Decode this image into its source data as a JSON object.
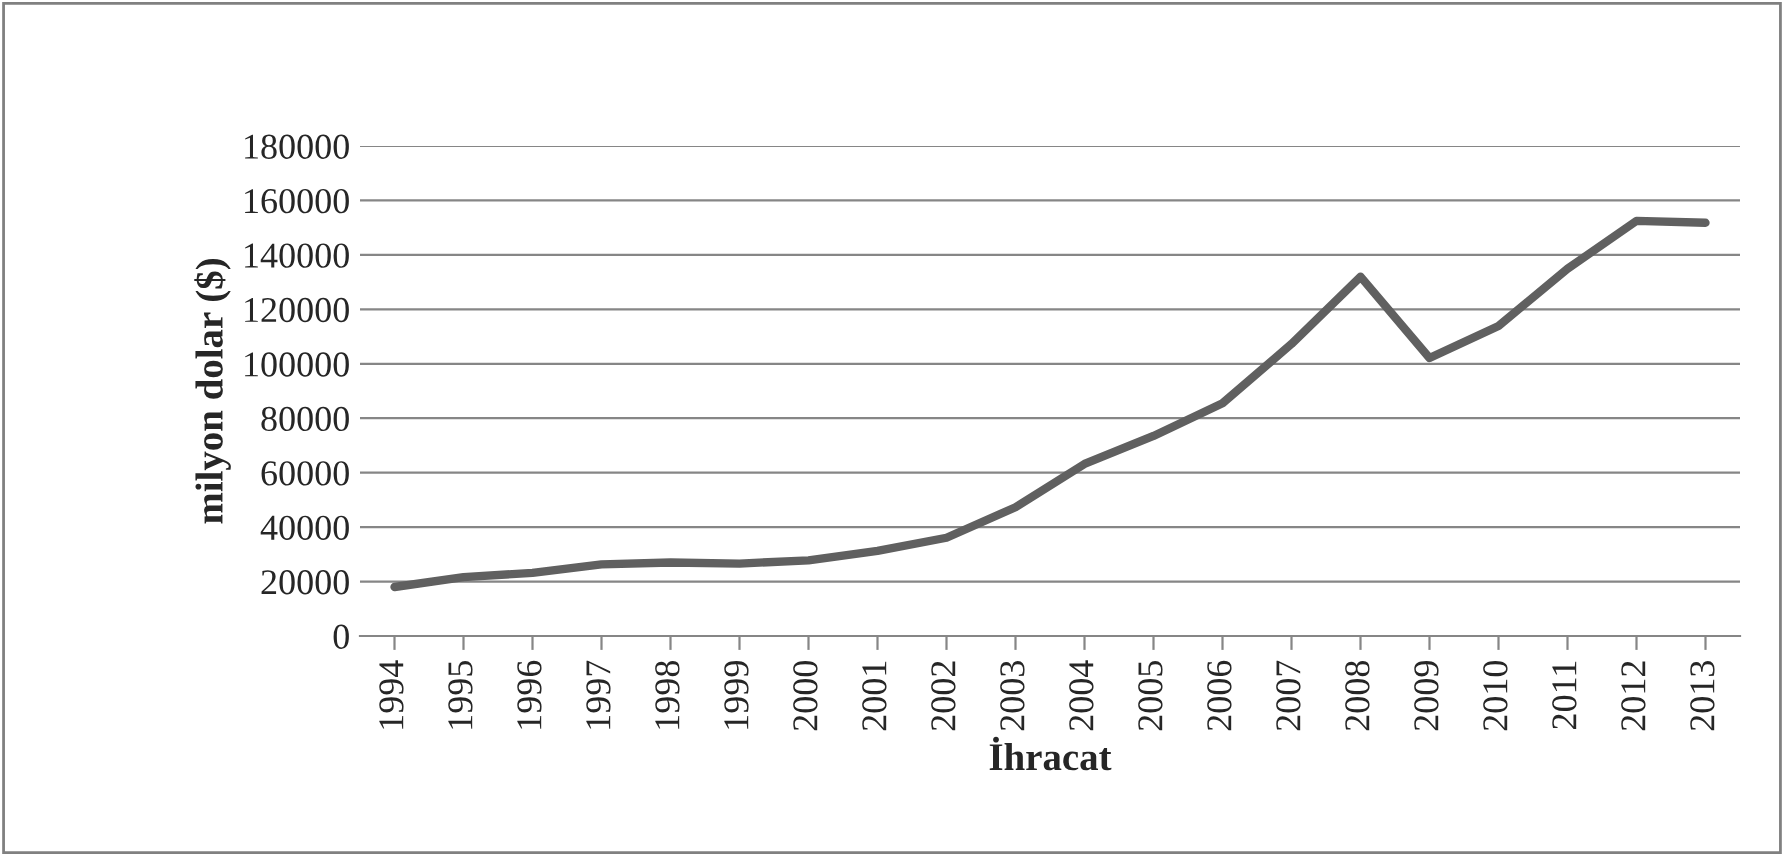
{
  "chart_data": {
    "type": "line",
    "xlabel": "İhracat",
    "ylabel": "milyon dolar ($)",
    "categories": [
      "1994",
      "1995",
      "1996",
      "1997",
      "1998",
      "1999",
      "2000",
      "2001",
      "2002",
      "2003",
      "2004",
      "2005",
      "2006",
      "2007",
      "2008",
      "2009",
      "2010",
      "2011",
      "2012",
      "2013"
    ],
    "series": [
      {
        "color": "#606060",
        "values": [
          18000,
          21600,
          23200,
          26300,
          27000,
          26600,
          27800,
          31300,
          36100,
          47300,
          63200,
          73500,
          85500,
          107300,
          132000,
          102100,
          113900,
          134900,
          152500,
          151800
        ]
      }
    ],
    "ylim": [
      0,
      180000
    ],
    "yticks": [
      0,
      20000,
      40000,
      60000,
      80000,
      100000,
      120000,
      140000,
      160000,
      180000
    ],
    "grid": "y",
    "marker": "none",
    "line_style": "solid"
  }
}
